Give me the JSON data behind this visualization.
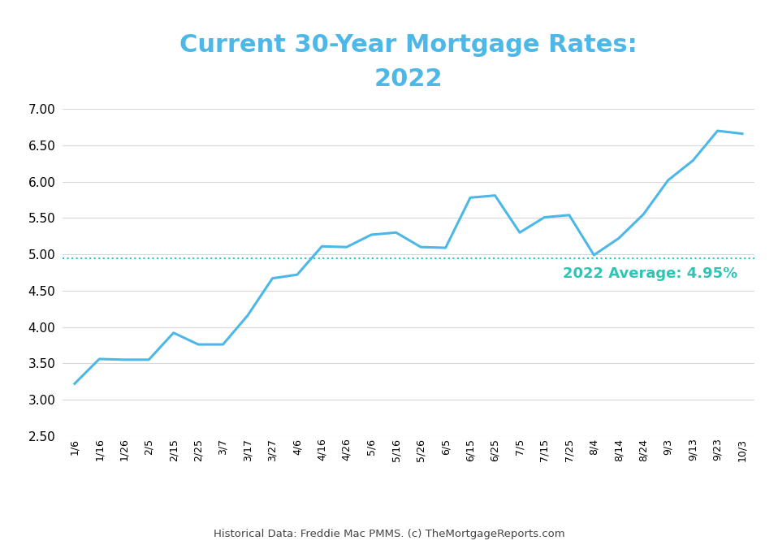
{
  "title_line1": "Current 30-Year Mortgage Rates:\n2022",
  "title_color": "#4db8e8",
  "line_color": "#4db8e8",
  "avg_line_color": "#2ec4b6",
  "avg_value": 4.95,
  "avg_label": "2022 Average: 4.95%",
  "footer": "Historical Data: Freddie Mac PMMS. (c) TheMortgageReports.com",
  "background_color": "#ffffff",
  "grid_color": "#d8d8d8",
  "ylim": [
    2.5,
    7.0
  ],
  "yticks": [
    2.5,
    3.0,
    3.5,
    4.0,
    4.5,
    5.0,
    5.5,
    6.0,
    6.5,
    7.0
  ],
  "dates": [
    "1/6",
    "1/16",
    "1/26",
    "2/5",
    "2/15",
    "2/25",
    "3/7",
    "3/17",
    "3/27",
    "4/6",
    "4/16",
    "4/26",
    "5/6",
    "5/16",
    "5/26",
    "6/5",
    "6/15",
    "6/25",
    "7/5",
    "7/15",
    "7/25",
    "8/4",
    "8/14",
    "8/24",
    "9/3",
    "9/13",
    "9/23",
    "10/3"
  ],
  "rates": [
    3.22,
    3.56,
    3.55,
    3.55,
    3.92,
    3.76,
    3.76,
    4.16,
    4.67,
    4.72,
    5.11,
    5.1,
    5.27,
    5.3,
    5.1,
    5.09,
    5.78,
    5.81,
    5.3,
    5.51,
    5.54,
    4.99,
    5.22,
    5.55,
    6.02,
    6.29,
    6.7,
    6.66
  ],
  "line_width": 2.2
}
